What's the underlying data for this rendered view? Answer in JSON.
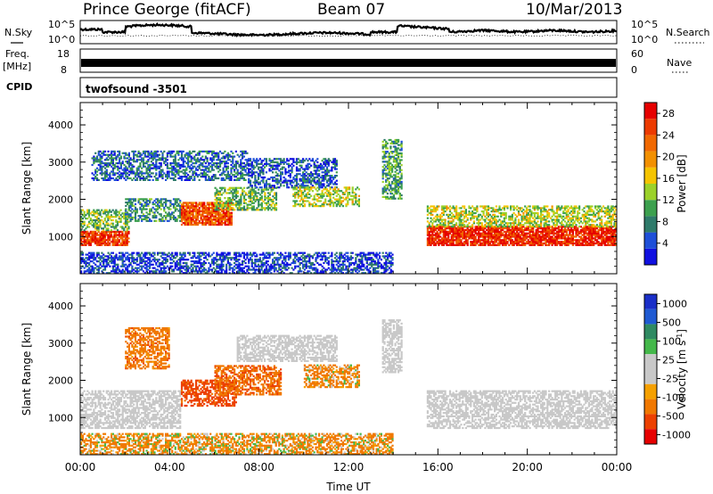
{
  "header": {
    "station": "Prince George (fitACF)",
    "beam": "Beam 07",
    "date": "10/Mar/2013"
  },
  "noise_panel": {
    "left_label": "N.Sky",
    "right_label": "N.Search",
    "left_ticks": [
      "10^5",
      "10^0"
    ],
    "right_ticks": [
      "10^5",
      "10^0"
    ],
    "line_color": "#000000"
  },
  "freq_panel": {
    "left_label_top": "Freq.",
    "left_label_bottom": "[MHz]",
    "right_label": "Nave",
    "left_ticks": [
      "18",
      "8"
    ],
    "right_ticks": [
      "60",
      "0"
    ],
    "bar_color": "#000000"
  },
  "cpid_panel": {
    "label": "CPID",
    "value": "twofsound -3501"
  },
  "colors": {
    "power_scale": [
      "#1010e0",
      "#1e4fd8",
      "#2e7a6a",
      "#3ca04e",
      "#9bd12a",
      "#f5c400",
      "#f29000",
      "#f06800",
      "#ec3a00",
      "#e60000"
    ],
    "velocity_scale": [
      "#1a2fc8",
      "#1f5ad2",
      "#2f8a62",
      "#44b84a",
      "#c8c8c8",
      "#c8c8c8",
      "#f5a000",
      "#f07800",
      "#ec4000",
      "#e60000"
    ],
    "ground_scatter": "#c8c8c8"
  },
  "chart_data": [
    {
      "type": "heatmap",
      "title": "",
      "xlabel": "",
      "ylabel": "Slant Range [km]",
      "xlim": [
        "00:00",
        "24:00"
      ],
      "ylim": [
        0,
        4600
      ],
      "x_ticks": [
        "00:00",
        "04:00",
        "08:00",
        "12:00",
        "16:00",
        "20:00",
        "00:00"
      ],
      "y_ticks": [
        1000,
        2000,
        3000,
        4000
      ],
      "colorbar": {
        "label": "Power [dB]",
        "ticks": [
          "4",
          "8",
          "12",
          "16",
          "20",
          "24",
          "28"
        ],
        "range": [
          0,
          30
        ]
      },
      "regions": [
        {
          "t0": 0.0,
          "t1": 2.2,
          "r0": 750,
          "r1": 1150,
          "level": 26
        },
        {
          "t0": 0.0,
          "t1": 2.2,
          "r0": 1150,
          "r1": 1700,
          "level": 12
        },
        {
          "t0": 2.0,
          "t1": 4.5,
          "r0": 1400,
          "r1": 2000,
          "level": 8
        },
        {
          "t0": 0.5,
          "t1": 7.5,
          "r0": 2500,
          "r1": 3300,
          "level": 6
        },
        {
          "t0": 4.5,
          "t1": 6.8,
          "r0": 1300,
          "r1": 1900,
          "level": 24
        },
        {
          "t0": 6.0,
          "t1": 8.8,
          "r0": 1700,
          "r1": 2300,
          "level": 12
        },
        {
          "t0": 7.5,
          "t1": 11.5,
          "r0": 2300,
          "r1": 3100,
          "level": 5
        },
        {
          "t0": 9.5,
          "t1": 12.5,
          "r0": 1800,
          "r1": 2300,
          "level": 14
        },
        {
          "t0": 13.5,
          "t1": 14.4,
          "r0": 2000,
          "r1": 3600,
          "level": 10
        },
        {
          "t0": 15.5,
          "t1": 24.0,
          "r0": 750,
          "r1": 1250,
          "level": 27
        },
        {
          "t0": 15.5,
          "t1": 24.0,
          "r0": 1250,
          "r1": 1800,
          "level": 14
        },
        {
          "t0": 0.0,
          "t1": 14.0,
          "r0": 0,
          "r1": 550,
          "level": 4
        }
      ]
    },
    {
      "type": "heatmap",
      "title": "",
      "xlabel": "Time UT",
      "ylabel": "Slant Range [km]",
      "xlim": [
        "00:00",
        "24:00"
      ],
      "ylim": [
        0,
        4600
      ],
      "x_ticks": [
        "00:00",
        "04:00",
        "08:00",
        "12:00",
        "16:00",
        "20:00",
        "00:00"
      ],
      "y_ticks": [
        1000,
        2000,
        3000,
        4000
      ],
      "colorbar": {
        "label": "Velocity [m s^-1]",
        "ticks": [
          "1000",
          "500",
          "100",
          "25",
          "-25",
          "-100",
          "-500",
          "-1000"
        ],
        "range": [
          -1000,
          1000
        ]
      },
      "regions": [
        {
          "t0": 0.0,
          "t1": 4.5,
          "r0": 700,
          "r1": 1700,
          "velocity": 0
        },
        {
          "t0": 2.0,
          "t1": 4.0,
          "r0": 2300,
          "r1": 3400,
          "velocity": -300
        },
        {
          "t0": 4.5,
          "t1": 7.0,
          "r0": 1300,
          "r1": 2000,
          "velocity": -700
        },
        {
          "t0": 6.0,
          "t1": 9.0,
          "r0": 1600,
          "r1": 2400,
          "velocity": -400
        },
        {
          "t0": 7.0,
          "t1": 11.5,
          "r0": 2500,
          "r1": 3200,
          "velocity": 0
        },
        {
          "t0": 10.0,
          "t1": 12.5,
          "r0": 1800,
          "r1": 2400,
          "velocity": -200
        },
        {
          "t0": 13.5,
          "t1": 14.4,
          "r0": 2200,
          "r1": 3600,
          "velocity": 0
        },
        {
          "t0": 15.5,
          "t1": 24.0,
          "r0": 700,
          "r1": 1700,
          "velocity": 0
        },
        {
          "t0": 0.0,
          "t1": 14.0,
          "r0": 0,
          "r1": 550,
          "velocity": -150
        }
      ]
    }
  ]
}
